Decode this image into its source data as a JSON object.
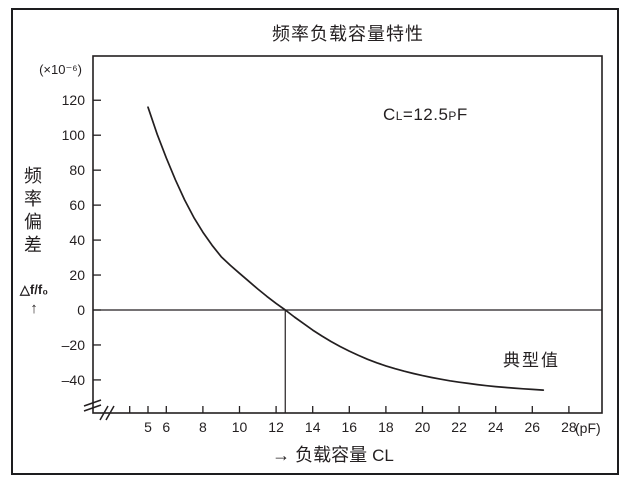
{
  "colors": {
    "ink": "#231f20",
    "background": "#ffffff"
  },
  "chart": {
    "title": "频率负载容量特性",
    "y_unit": "(×10⁻⁶)",
    "ylabel": "频率偏差",
    "delta_label": "△f/f₀",
    "up_arrow": "↑",
    "xlabel_arrow": "→ ",
    "xlabel_text": "负载容量 ",
    "xlabel_symbol": "C",
    "xlabel_symbol_sub": "L",
    "pf_unit": "(pF)",
    "annotation": {
      "c": "C",
      "c_sub": "L",
      "eq": "=12.5",
      "p": "P",
      "f": "F",
      "full": "CL=12.5pF"
    },
    "typical_label": "典型值"
  },
  "chart_data": {
    "type": "line",
    "title": "频率负载容量特性",
    "xlabel": "负载容量 CL (pF)",
    "ylabel": "频率偏差 △f/f₀ (×10⁻⁶)",
    "xlim": [
      2,
      29.8
    ],
    "ylim": [
      -59,
      145
    ],
    "grid": false,
    "legend": "none",
    "axis_breaks": {
      "x": true,
      "y": true
    },
    "zero_line": true,
    "marker_x": 12.5,
    "x_ticks": [
      4,
      5,
      6,
      8,
      10,
      12,
      14,
      16,
      18,
      20,
      22,
      24,
      26,
      28
    ],
    "x_tick_labels": [
      "",
      "5",
      "6",
      "8",
      "10",
      "12",
      "14",
      "16",
      "18",
      "20",
      "22",
      "24",
      "26",
      "28"
    ],
    "y_ticks": [
      120,
      100,
      80,
      60,
      40,
      20,
      0,
      -20,
      -40
    ],
    "y_tick_labels": [
      "120",
      "100",
      "80",
      "60",
      "40",
      "20",
      "0",
      "–20",
      "–40"
    ],
    "series": [
      {
        "name": "典型值 (CL=12.5pF)",
        "points": [
          [
            5,
            116
          ],
          [
            5.5,
            100.5
          ],
          [
            6,
            87
          ],
          [
            6.5,
            74.5
          ],
          [
            7,
            63
          ],
          [
            7.5,
            53
          ],
          [
            8,
            44.5
          ],
          [
            8.5,
            37
          ],
          [
            9,
            30.5
          ],
          [
            9.5,
            25.5
          ],
          [
            10,
            21
          ],
          [
            10.5,
            16.5
          ],
          [
            11,
            12
          ],
          [
            11.5,
            7.8
          ],
          [
            12,
            3.8
          ],
          [
            12.5,
            0
          ],
          [
            13,
            -4
          ],
          [
            13.5,
            -7.8
          ],
          [
            14,
            -11.5
          ],
          [
            14.5,
            -14.9
          ],
          [
            15,
            -18
          ],
          [
            15.5,
            -20.9
          ],
          [
            16,
            -23.5
          ],
          [
            16.5,
            -26
          ],
          [
            17,
            -28.2
          ],
          [
            17.5,
            -30.2
          ],
          [
            18,
            -32
          ],
          [
            18.5,
            -33.6
          ],
          [
            19,
            -35
          ],
          [
            19.5,
            -36.3
          ],
          [
            20,
            -37.5
          ],
          [
            20.5,
            -38.6
          ],
          [
            21,
            -39.6
          ],
          [
            21.5,
            -40.5
          ],
          [
            22,
            -41.3
          ],
          [
            22.5,
            -42
          ],
          [
            23,
            -42.7
          ],
          [
            23.5,
            -43.3
          ],
          [
            24,
            -43.8
          ],
          [
            24.5,
            -44.3
          ],
          [
            25,
            -44.7
          ],
          [
            25.5,
            -45.1
          ],
          [
            26,
            -45.4
          ],
          [
            26.6,
            -45.8
          ]
        ]
      }
    ],
    "annotations": [
      {
        "text": "CL=12.5pF",
        "x": 20.5,
        "y": 110
      },
      {
        "text": "典型值",
        "x": 26.1,
        "y": -27.5
      }
    ]
  }
}
